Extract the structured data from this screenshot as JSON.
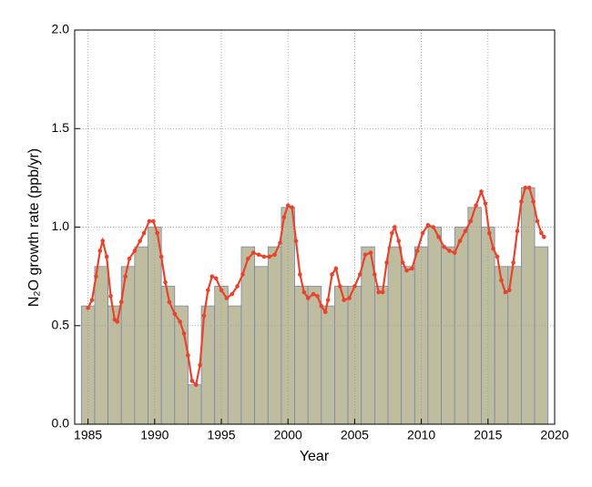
{
  "chart_data": [
    {
      "type": "histogram",
      "x_label": "Year",
      "y_label": "N₂O growth rate (ppb/yr)",
      "bins": [
        1984.5,
        1985.5,
        1986.5,
        1987.5,
        1988.5,
        1989.5,
        1990.5,
        1991.5,
        1992.5,
        1993.5,
        1994.5,
        1995.5,
        1996.5,
        1997.5,
        1998.5,
        1999.5,
        2000.5,
        2001.5,
        2002.5,
        2003.5,
        2004.5,
        2005.5,
        2006.5,
        2007.5,
        2008.5,
        2009.5,
        2010.5,
        2011.5,
        2012.5,
        2013.5,
        2014.5,
        2015.5,
        2016.5,
        2017.5,
        2018.5,
        2019.5
      ],
      "values": [
        0.6,
        0.8,
        0.6,
        0.8,
        0.9,
        1.0,
        0.7,
        0.6,
        0.2,
        0.6,
        0.7,
        0.6,
        0.9,
        0.8,
        0.9,
        1.1,
        0.7,
        0.7,
        0.6,
        0.7,
        0.7,
        0.9,
        0.7,
        0.9,
        0.8,
        0.9,
        1.0,
        0.9,
        1.0,
        1.1,
        1.0,
        0.8,
        0.8,
        1.2,
        0.9
      ],
      "color": "#bfbd9f",
      "edge_color": "#7c84a4",
      "xlim": [
        1984,
        2020
      ],
      "ylim": [
        0,
        2
      ],
      "xticks": [
        1985,
        1990,
        1995,
        2000,
        2005,
        2010,
        2015,
        2020
      ],
      "yticks": [
        {
          "value": 0,
          "label": "0.0"
        },
        0.5,
        {
          "value": 1,
          "label": "1.0"
        },
        1.5,
        {
          "value": 2,
          "label": "2.0"
        }
      ],
      "grid": true
    },
    {
      "type": "line",
      "color": "#e8432c",
      "x": [
        1985.0,
        1985.3,
        1985.6,
        1985.9,
        1986.1,
        1986.4,
        1986.7,
        1987.0,
        1987.2,
        1987.5,
        1987.8,
        1988.1,
        1988.5,
        1988.9,
        1989.2,
        1989.6,
        1989.9,
        1990.2,
        1990.5,
        1990.8,
        1991.1,
        1991.5,
        1991.9,
        1992.2,
        1992.5,
        1992.8,
        1993.1,
        1993.4,
        1993.7,
        1994.0,
        1994.3,
        1994.6,
        1995.0,
        1995.4,
        1995.8,
        1996.2,
        1996.6,
        1997.0,
        1997.4,
        1997.8,
        1998.2,
        1998.6,
        1999.0,
        1999.4,
        1999.7,
        2000.0,
        2000.3,
        2000.6,
        2000.9,
        2001.2,
        2001.5,
        2001.9,
        2002.2,
        2002.5,
        2002.8,
        2003.0,
        2003.3,
        2003.6,
        2003.9,
        2004.2,
        2004.6,
        2005.0,
        2005.4,
        2005.8,
        2006.2,
        2006.5,
        2006.8,
        2007.1,
        2007.4,
        2007.8,
        2008.0,
        2008.3,
        2008.6,
        2008.9,
        2009.3,
        2009.7,
        2010.1,
        2010.5,
        2010.9,
        2011.3,
        2011.7,
        2012.1,
        2012.5,
        2012.9,
        2013.3,
        2013.7,
        2014.1,
        2014.5,
        2014.8,
        2015.1,
        2015.4,
        2015.7,
        2016.0,
        2016.3,
        2016.6,
        2016.9,
        2017.2,
        2017.5,
        2017.8,
        2018.1,
        2018.4,
        2018.7,
        2019.0,
        2019.2
      ],
      "values": [
        0.59,
        0.63,
        0.75,
        0.88,
        0.93,
        0.85,
        0.65,
        0.53,
        0.52,
        0.62,
        0.75,
        0.84,
        0.88,
        0.93,
        0.97,
        1.03,
        1.03,
        0.97,
        0.85,
        0.72,
        0.62,
        0.56,
        0.52,
        0.46,
        0.35,
        0.22,
        0.2,
        0.3,
        0.55,
        0.68,
        0.75,
        0.74,
        0.68,
        0.64,
        0.66,
        0.7,
        0.76,
        0.84,
        0.87,
        0.86,
        0.85,
        0.85,
        0.86,
        0.92,
        1.05,
        1.11,
        1.1,
        0.93,
        0.76,
        0.67,
        0.64,
        0.66,
        0.65,
        0.6,
        0.57,
        0.63,
        0.76,
        0.79,
        0.7,
        0.63,
        0.64,
        0.7,
        0.76,
        0.86,
        0.87,
        0.76,
        0.67,
        0.67,
        0.82,
        0.97,
        1.0,
        0.93,
        0.82,
        0.78,
        0.79,
        0.88,
        0.97,
        1.01,
        1.0,
        0.95,
        0.9,
        0.88,
        0.87,
        0.93,
        0.98,
        1.03,
        1.11,
        1.18,
        1.12,
        0.97,
        0.89,
        0.85,
        0.73,
        0.67,
        0.68,
        0.82,
        0.98,
        1.13,
        1.2,
        1.2,
        1.13,
        1.03,
        0.97,
        0.95
      ],
      "xlim": [
        1984,
        2020
      ],
      "ylim": [
        0,
        2
      ]
    }
  ]
}
